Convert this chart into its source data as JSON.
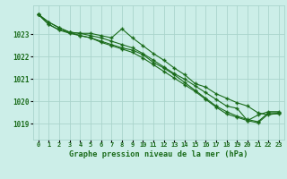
{
  "title": "Graphe pression niveau de la mer (hPa)",
  "x_labels": [
    "0",
    "1",
    "2",
    "3",
    "4",
    "5",
    "6",
    "7",
    "8",
    "9",
    "10",
    "11",
    "12",
    "13",
    "14",
    "15",
    "16",
    "17",
    "18",
    "19",
    "20",
    "21",
    "22",
    "23"
  ],
  "ylim": [
    1018.3,
    1024.3
  ],
  "yticks": [
    1019,
    1020,
    1021,
    1022,
    1023
  ],
  "background_color": "#cceee8",
  "grid_color": "#aad4cc",
  "line_color": "#1a6b1a",
  "series1": [
    1023.9,
    1023.55,
    1023.3,
    1023.1,
    1023.05,
    1022.95,
    1022.85,
    1022.7,
    1022.55,
    1022.4,
    1022.15,
    1021.85,
    1021.55,
    1021.25,
    1021.0,
    1020.7,
    1020.4,
    1020.1,
    1019.8,
    1019.7,
    1019.15,
    1019.4,
    1019.55,
    1019.55
  ],
  "series2": [
    1023.9,
    1023.55,
    1023.3,
    1023.1,
    1023.05,
    1023.05,
    1022.95,
    1022.85,
    1023.25,
    1022.85,
    1022.5,
    1022.15,
    1021.85,
    1021.5,
    1021.2,
    1020.8,
    1020.65,
    1020.35,
    1020.15,
    1019.95,
    1019.8,
    1019.5,
    1019.4,
    1019.5
  ],
  "series3": [
    1023.9,
    1023.45,
    1023.2,
    1023.05,
    1022.95,
    1022.85,
    1022.7,
    1022.55,
    1022.4,
    1022.3,
    1022.1,
    1021.75,
    1021.5,
    1021.2,
    1020.85,
    1020.5,
    1020.15,
    1019.8,
    1019.55,
    1019.35,
    1019.2,
    1019.1,
    1019.5,
    1019.5
  ],
  "series4": [
    1023.9,
    1023.45,
    1023.2,
    1023.1,
    1022.95,
    1022.85,
    1022.65,
    1022.5,
    1022.35,
    1022.2,
    1021.95,
    1021.65,
    1021.35,
    1021.05,
    1020.75,
    1020.45,
    1020.1,
    1019.75,
    1019.45,
    1019.3,
    1019.15,
    1019.05,
    1019.45,
    1019.45
  ]
}
